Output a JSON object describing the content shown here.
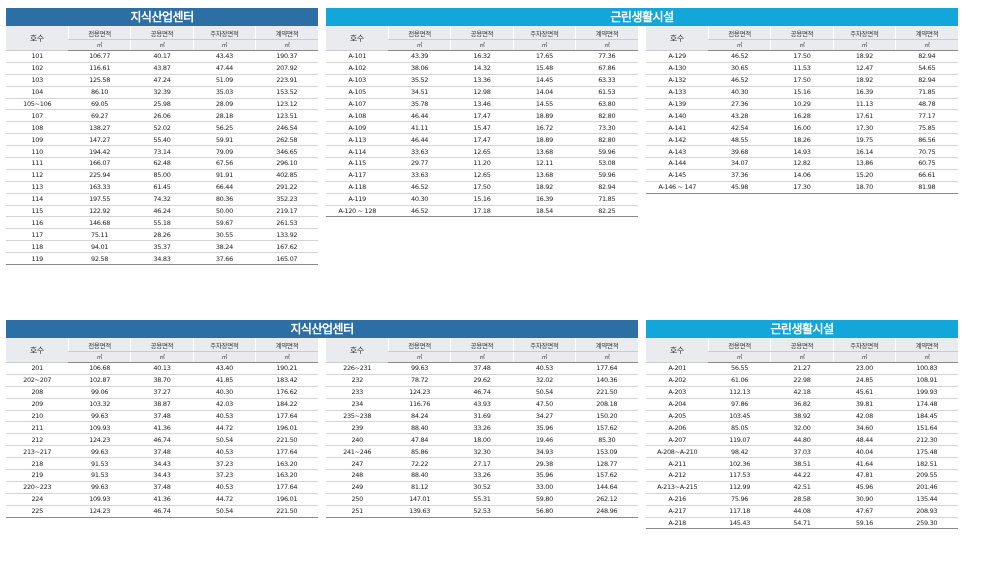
{
  "headers": {
    "ho": "호수",
    "cols": [
      "전용면적",
      "공용면적",
      "주차장면적",
      "계약면적"
    ],
    "unit": "㎡"
  },
  "panels": [
    {
      "title": "지식산업센터",
      "rows": [
        [
          "101",
          "106.77",
          "40.17",
          "43.43",
          "190.37"
        ],
        [
          "102",
          "116.61",
          "43.87",
          "47.44",
          "207.92"
        ],
        [
          "103",
          "125.58",
          "47.24",
          "51.09",
          "223.91"
        ],
        [
          "104",
          "86.10",
          "32.39",
          "35.03",
          "153.52"
        ],
        [
          "105~106",
          "69.05",
          "25.98",
          "28.09",
          "123.12"
        ],
        [
          "107",
          "69.27",
          "26.06",
          "28.18",
          "123.51"
        ],
        [
          "108",
          "138.27",
          "52.02",
          "56.25",
          "246.54"
        ],
        [
          "109",
          "147.27",
          "55.40",
          "59.91",
          "262.58"
        ],
        [
          "110",
          "194.42",
          "73.14",
          "79.09",
          "346.65"
        ],
        [
          "111",
          "166.07",
          "62.48",
          "67.56",
          "296.10"
        ],
        [
          "112",
          "225.94",
          "85.00",
          "91.91",
          "402.85"
        ],
        [
          "113",
          "163.33",
          "61.45",
          "66.44",
          "291.22"
        ],
        [
          "114",
          "197.55",
          "74.32",
          "80.36",
          "352.23"
        ],
        [
          "115",
          "122.92",
          "46.24",
          "50.00",
          "219.17"
        ],
        [
          "116",
          "146.68",
          "55.18",
          "59.67",
          "261.53"
        ],
        [
          "117",
          "75.11",
          "28.26",
          "30.55",
          "133.92"
        ],
        [
          "118",
          "94.01",
          "35.37",
          "38.24",
          "167.62"
        ],
        [
          "119",
          "92.58",
          "34.83",
          "37.66",
          "165.07"
        ]
      ]
    },
    {
      "title": "근린생활시설",
      "rows": [
        [
          "A-101",
          "43.39",
          "16.32",
          "17.65",
          "77.36"
        ],
        [
          "A-102",
          "38.06",
          "14.32",
          "15.48",
          "67.86"
        ],
        [
          "A-103",
          "35.52",
          "13.36",
          "14.45",
          "63.33"
        ],
        [
          "A-105",
          "34.51",
          "12.98",
          "14.04",
          "61.53"
        ],
        [
          "A-107",
          "35.78",
          "13.46",
          "14.55",
          "63.80"
        ],
        [
          "A-108",
          "46.44",
          "17.47",
          "18.89",
          "82.80"
        ],
        [
          "A-109",
          "41.11",
          "15.47",
          "16.72",
          "73.30"
        ],
        [
          "A-113",
          "46.44",
          "17.47",
          "18.89",
          "82.80"
        ],
        [
          "A-114",
          "33.63",
          "12.65",
          "13.68",
          "59.96"
        ],
        [
          "A-115",
          "29.77",
          "11.20",
          "12.11",
          "53.08"
        ],
        [
          "A-117",
          "33.63",
          "12.65",
          "13.68",
          "59.96"
        ],
        [
          "A-118",
          "46.52",
          "17.50",
          "18.92",
          "82.94"
        ],
        [
          "A-119",
          "40.30",
          "15.16",
          "16.39",
          "71.85"
        ],
        [
          "A-120 ~ 128",
          "46.52",
          "17.18",
          "18.54",
          "82.25"
        ]
      ]
    },
    {
      "title": "",
      "rows": [
        [
          "A-129",
          "46.52",
          "17.50",
          "18.92",
          "82.94"
        ],
        [
          "A-130",
          "30.65",
          "11.53",
          "12.47",
          "54.65"
        ],
        [
          "A-132",
          "46.52",
          "17.50",
          "18.92",
          "82.94"
        ],
        [
          "A-133",
          "40.30",
          "15.16",
          "16.39",
          "71.85"
        ],
        [
          "A-139",
          "27.36",
          "10.29",
          "11.13",
          "48.78"
        ],
        [
          "A-140",
          "43.28",
          "16.28",
          "17.61",
          "77.17"
        ],
        [
          "A-141",
          "42.54",
          "16.00",
          "17.30",
          "75.85"
        ],
        [
          "A-142",
          "48.55",
          "18.26",
          "19.75",
          "86.56"
        ],
        [
          "A-143",
          "39.68",
          "14.93",
          "16.14",
          "70.75"
        ],
        [
          "A-144",
          "34.07",
          "12.82",
          "13.86",
          "60.75"
        ],
        [
          "A-145",
          "37.36",
          "14.06",
          "15.20",
          "66.61"
        ],
        [
          "A-146 ~ 147",
          "45.98",
          "17.30",
          "18.70",
          "81.98"
        ]
      ]
    },
    {
      "title": "지식산업센터",
      "rows": [
        [
          "201",
          "106.68",
          "40.13",
          "43.40",
          "190.21"
        ],
        [
          "202~207",
          "102.87",
          "38.70",
          "41.85",
          "183.42"
        ],
        [
          "208",
          "99.06",
          "37.27",
          "40.30",
          "176.62"
        ],
        [
          "209",
          "103.32",
          "38.87",
          "42.03",
          "184.22"
        ],
        [
          "210",
          "99.63",
          "37.48",
          "40.53",
          "177.64"
        ],
        [
          "211",
          "109.93",
          "41.36",
          "44.72",
          "196.01"
        ],
        [
          "212",
          "124.23",
          "46.74",
          "50.54",
          "221.50"
        ],
        [
          "213~217",
          "99.63",
          "37.48",
          "40.53",
          "177.64"
        ],
        [
          "218",
          "91.53",
          "34.43",
          "37.23",
          "163.20"
        ],
        [
          "219",
          "91.53",
          "34.43",
          "37.23",
          "163.20"
        ],
        [
          "220~223",
          "99.63",
          "37.48",
          "40.53",
          "177.64"
        ],
        [
          "224",
          "109.93",
          "41.36",
          "44.72",
          "196.01"
        ],
        [
          "225",
          "124.23",
          "46.74",
          "50.54",
          "221.50"
        ]
      ]
    },
    {
      "title": "",
      "rows": [
        [
          "226~231",
          "99.63",
          "37.48",
          "40.53",
          "177.64"
        ],
        [
          "232",
          "78.72",
          "29.62",
          "32.02",
          "140.36"
        ],
        [
          "233",
          "124.23",
          "46.74",
          "50.54",
          "221.50"
        ],
        [
          "234",
          "116.76",
          "43.93",
          "47.50",
          "208.18"
        ],
        [
          "235~238",
          "84.24",
          "31.69",
          "34.27",
          "150.20"
        ],
        [
          "239",
          "88.40",
          "33.26",
          "35.96",
          "157.62"
        ],
        [
          "240",
          "47.84",
          "18.00",
          "19.46",
          "85.30"
        ],
        [
          "241~246",
          "85.86",
          "32.30",
          "34.93",
          "153.09"
        ],
        [
          "247",
          "72.22",
          "27.17",
          "29.38",
          "128.77"
        ],
        [
          "248",
          "88.40",
          "33.26",
          "35.96",
          "157.62"
        ],
        [
          "249",
          "81.12",
          "30.52",
          "33.00",
          "144.64"
        ],
        [
          "250",
          "147.01",
          "55.31",
          "59.80",
          "262.12"
        ],
        [
          "251",
          "139.63",
          "52.53",
          "56.80",
          "248.96"
        ]
      ]
    },
    {
      "title": "근린생활시설",
      "rows": [
        [
          "A-201",
          "56.55",
          "21.27",
          "23.00",
          "100.83"
        ],
        [
          "A-202",
          "61.06",
          "22.98",
          "24.85",
          "108.91"
        ],
        [
          "A-203",
          "112.13",
          "42.18",
          "45.61",
          "199.93"
        ],
        [
          "A-204",
          "97.86",
          "36.82",
          "39.81",
          "174.48"
        ],
        [
          "A-205",
          "103.45",
          "38.92",
          "42.08",
          "184.45"
        ],
        [
          "A-206",
          "85.05",
          "32.00",
          "34.60",
          "151.64"
        ],
        [
          "A-207",
          "119.07",
          "44.80",
          "48.44",
          "212.30"
        ],
        [
          "A-208~A-210",
          "98.42",
          "37.03",
          "40.04",
          "175.48"
        ],
        [
          "A-211",
          "102.36",
          "38.51",
          "41.64",
          "182.51"
        ],
        [
          "A-212",
          "117.53",
          "44.22",
          "47.81",
          "209.55"
        ],
        [
          "A-213~A-215",
          "112.99",
          "42.51",
          "45.96",
          "201.46"
        ],
        [
          "A-216",
          "75.96",
          "28.58",
          "30.90",
          "135.44"
        ],
        [
          "A-217",
          "117.18",
          "44.08",
          "47.67",
          "208.93"
        ],
        [
          "A-218",
          "145.43",
          "54.71",
          "59.16",
          "259.30"
        ]
      ]
    }
  ]
}
